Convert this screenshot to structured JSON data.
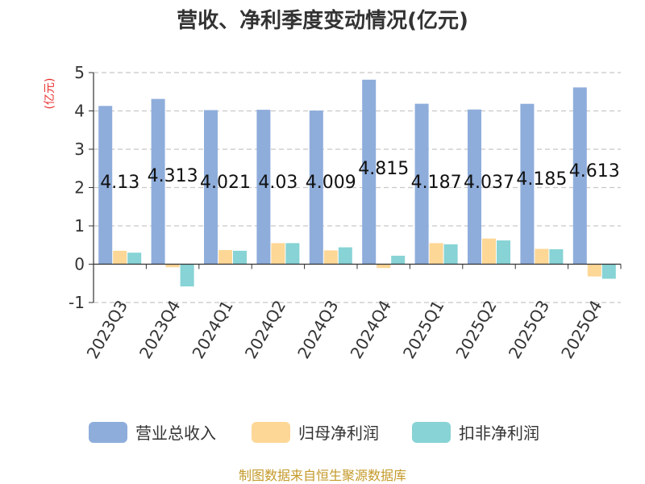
{
  "title": "营收、净利季度变动情况(亿元)",
  "source": "制图数据来自恒生聚源数据库",
  "chart_data": {
    "type": "bar",
    "title": "营收、净利季度变动情况(亿元)",
    "xlabel": "",
    "ylabel": "(亿元)",
    "ylim": [
      -1,
      5
    ],
    "yticks": [
      "5",
      "4",
      "3",
      "2",
      "1",
      "0",
      "-1"
    ],
    "grid": true,
    "legend_position": "bottom",
    "categories": [
      "2023Q3",
      "2023Q4",
      "2024Q1",
      "2024Q2",
      "2024Q3",
      "2024Q4",
      "2025Q1",
      "2025Q2",
      "2025Q3",
      "2025Q4"
    ],
    "series": [
      {
        "name": "营业总收入",
        "color": "#8eaddb",
        "values": [
          4.13,
          4.313,
          4.021,
          4.03,
          4.009,
          4.815,
          4.187,
          4.037,
          4.185,
          4.613
        ],
        "labels": [
          "4.13",
          "4.313",
          "4.021",
          "4.03",
          "4.009",
          "4.815",
          "4.187",
          "4.037",
          "4.185",
          "4.613"
        ]
      },
      {
        "name": "归母净利润",
        "color": "#fdd796",
        "values": [
          0.35,
          -0.08,
          0.37,
          0.55,
          0.36,
          -0.1,
          0.55,
          0.67,
          0.4,
          -0.32
        ]
      },
      {
        "name": "扣非净利润",
        "color": "#87d3d5",
        "values": [
          0.3,
          -0.58,
          0.35,
          0.55,
          0.44,
          0.22,
          0.52,
          0.62,
          0.39,
          -0.38
        ]
      }
    ]
  }
}
